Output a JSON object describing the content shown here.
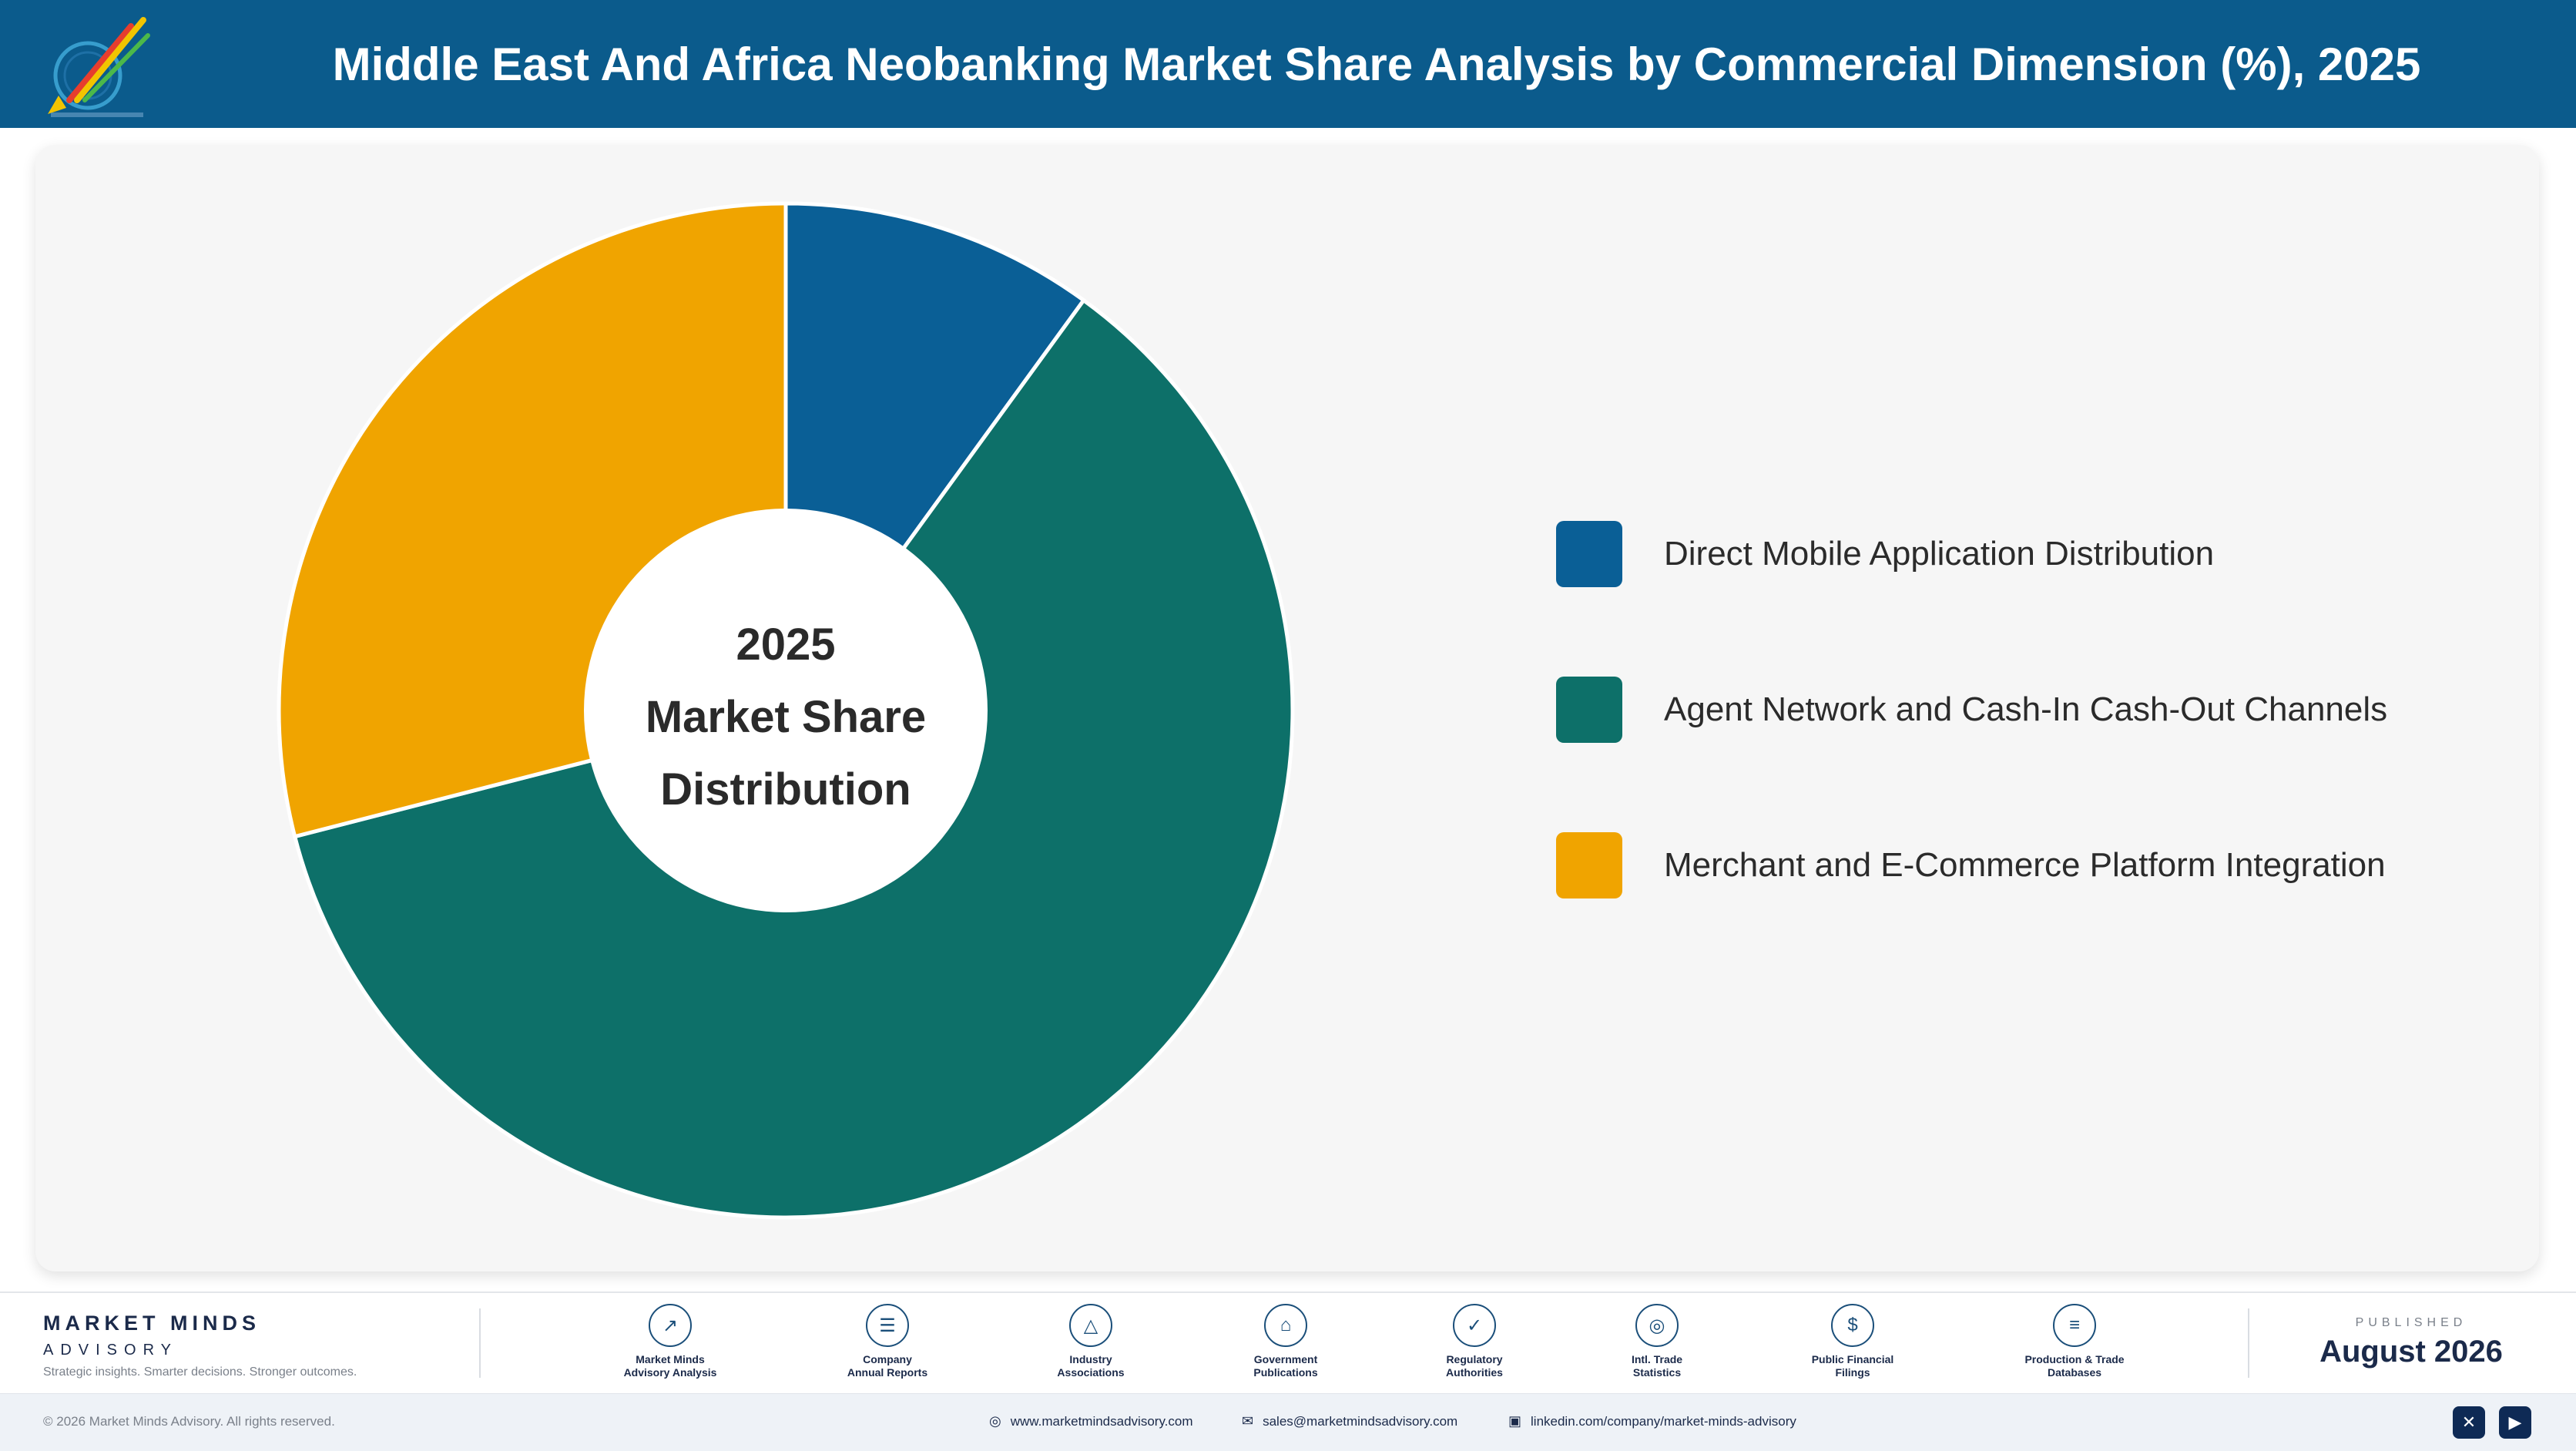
{
  "header": {
    "title": "Middle East And Africa Neobanking Market Share Analysis by Commercial Dimension (%), 2025"
  },
  "logo": {
    "icon": "rocket-logo-icon"
  },
  "chart_data": {
    "type": "pie",
    "center_label": [
      "2025",
      "Market Share",
      "Distribution"
    ],
    "categories": [
      "Direct Mobile Application Distribution",
      "Agent Network and Cash-In Cash-Out Channels",
      "Merchant and E-Commerce Platform Integration"
    ],
    "values": [
      10,
      61,
      29
    ],
    "colors": [
      "#0a5f96",
      "#0d7069",
      "#f0a400"
    ],
    "legend_position": "right",
    "start_angle_deg": 0,
    "direction": "clockwise",
    "donut": true
  },
  "footer": {
    "brand_name": "MARKET MINDS",
    "brand_sub": "ADVISORY",
    "brand_tagline": "Strategic insights. Smarter decisions. Stronger outcomes.",
    "sources": [
      {
        "icon": "trend-chart-icon",
        "line1": "Market Minds",
        "line2": "Advisory Analysis"
      },
      {
        "icon": "document-icon",
        "line1": "Company",
        "line2": "Annual Reports"
      },
      {
        "icon": "network-icon",
        "line1": "Industry",
        "line2": "Associations"
      },
      {
        "icon": "government-building-icon",
        "line1": "Government",
        "line2": "Publications"
      },
      {
        "icon": "shield-check-icon",
        "line1": "Regulatory",
        "line2": "Authorities"
      },
      {
        "icon": "globe-icon",
        "line1": "Intl. Trade",
        "line2": "Statistics"
      },
      {
        "icon": "dollar-coin-icon",
        "line1": "Public Financial",
        "line2": "Filings"
      },
      {
        "icon": "database-icon",
        "line1": "Production & Trade",
        "line2": "Databases"
      }
    ],
    "published_label": "PUBLISHED",
    "published_date": "August 2026"
  },
  "bottom_bar": {
    "copyright": "© 2026 Market Minds Advisory. All rights reserved.",
    "website": "www.marketmindsadvisory.com",
    "email": "sales@marketmindsadvisory.com",
    "linkedin": "linkedin.com/company/market-minds-advisory",
    "social_icons": [
      "x-icon",
      "youtube-icon"
    ]
  }
}
